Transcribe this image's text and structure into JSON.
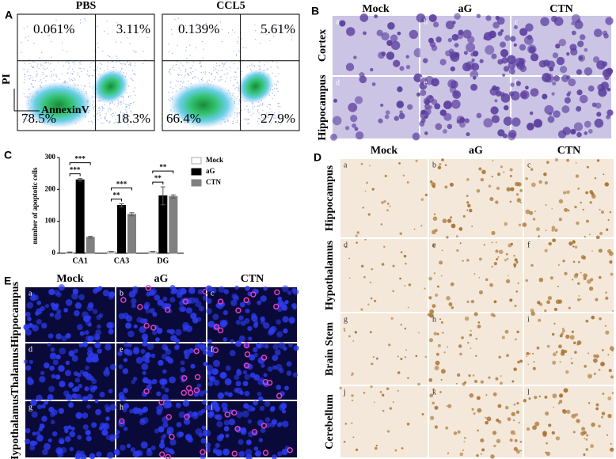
{
  "panels": {
    "A": {
      "label": "A",
      "plots": [
        {
          "title": "PBS",
          "quadrants": [
            "0.061%",
            "3.11%",
            "78.5%",
            "18.3%"
          ]
        },
        {
          "title": "CCL5",
          "quadrants": [
            "0.139%",
            "5.61%",
            "66.4%",
            "27.9%"
          ]
        }
      ],
      "y_label": "PI",
      "x_label": "AnnexinV"
    },
    "B": {
      "label": "B",
      "columns": [
        "Mock",
        "aG",
        "CTN"
      ],
      "rows": [
        "Cortex",
        "Hippocampus"
      ],
      "letters": [
        "a",
        "b",
        "c",
        "d",
        "e",
        "f"
      ]
    },
    "D": {
      "label": "D",
      "columns": [
        "Mock",
        "aG",
        "CTN"
      ],
      "rows": [
        "Hippocampus",
        "Hypothalamus",
        "Brain Stem",
        "Cerebellum"
      ],
      "letters": [
        "a",
        "b",
        "c",
        "d",
        "e",
        "f",
        "g",
        "h",
        "i",
        "j",
        "k",
        "l"
      ]
    },
    "E": {
      "label": "E",
      "columns": [
        "Mock",
        "aG",
        "CTN"
      ],
      "rows": [
        "Hippocampus",
        "Thalamus",
        "Hypothalamus"
      ],
      "letters": [
        "a",
        "b",
        "c",
        "d",
        "e",
        "f",
        "g",
        "h",
        "i"
      ]
    }
  },
  "chart_data": {
    "type": "bar",
    "panel": "C",
    "y_label": "number of apoptotic cells",
    "categories": [
      "CA1",
      "CA3",
      "DG"
    ],
    "series": [
      {
        "name": "Mock",
        "color": "#ffffff",
        "values": [
          3,
          5,
          5
        ],
        "errors": [
          1,
          1,
          1
        ]
      },
      {
        "name": "aG",
        "color": "#000000",
        "values": [
          230,
          150,
          180
        ],
        "errors": [
          4,
          5,
          28
        ]
      },
      {
        "name": "CTN",
        "color": "#808080",
        "values": [
          50,
          122,
          178
        ],
        "errors": [
          3,
          5,
          5
        ]
      }
    ],
    "significance": [
      [
        "***",
        "***"
      ],
      [
        "**",
        "***"
      ],
      [
        "**",
        "**"
      ]
    ],
    "ylim": [
      0,
      300
    ],
    "yticks": [
      0,
      100,
      200,
      300
    ],
    "legend": "right"
  }
}
